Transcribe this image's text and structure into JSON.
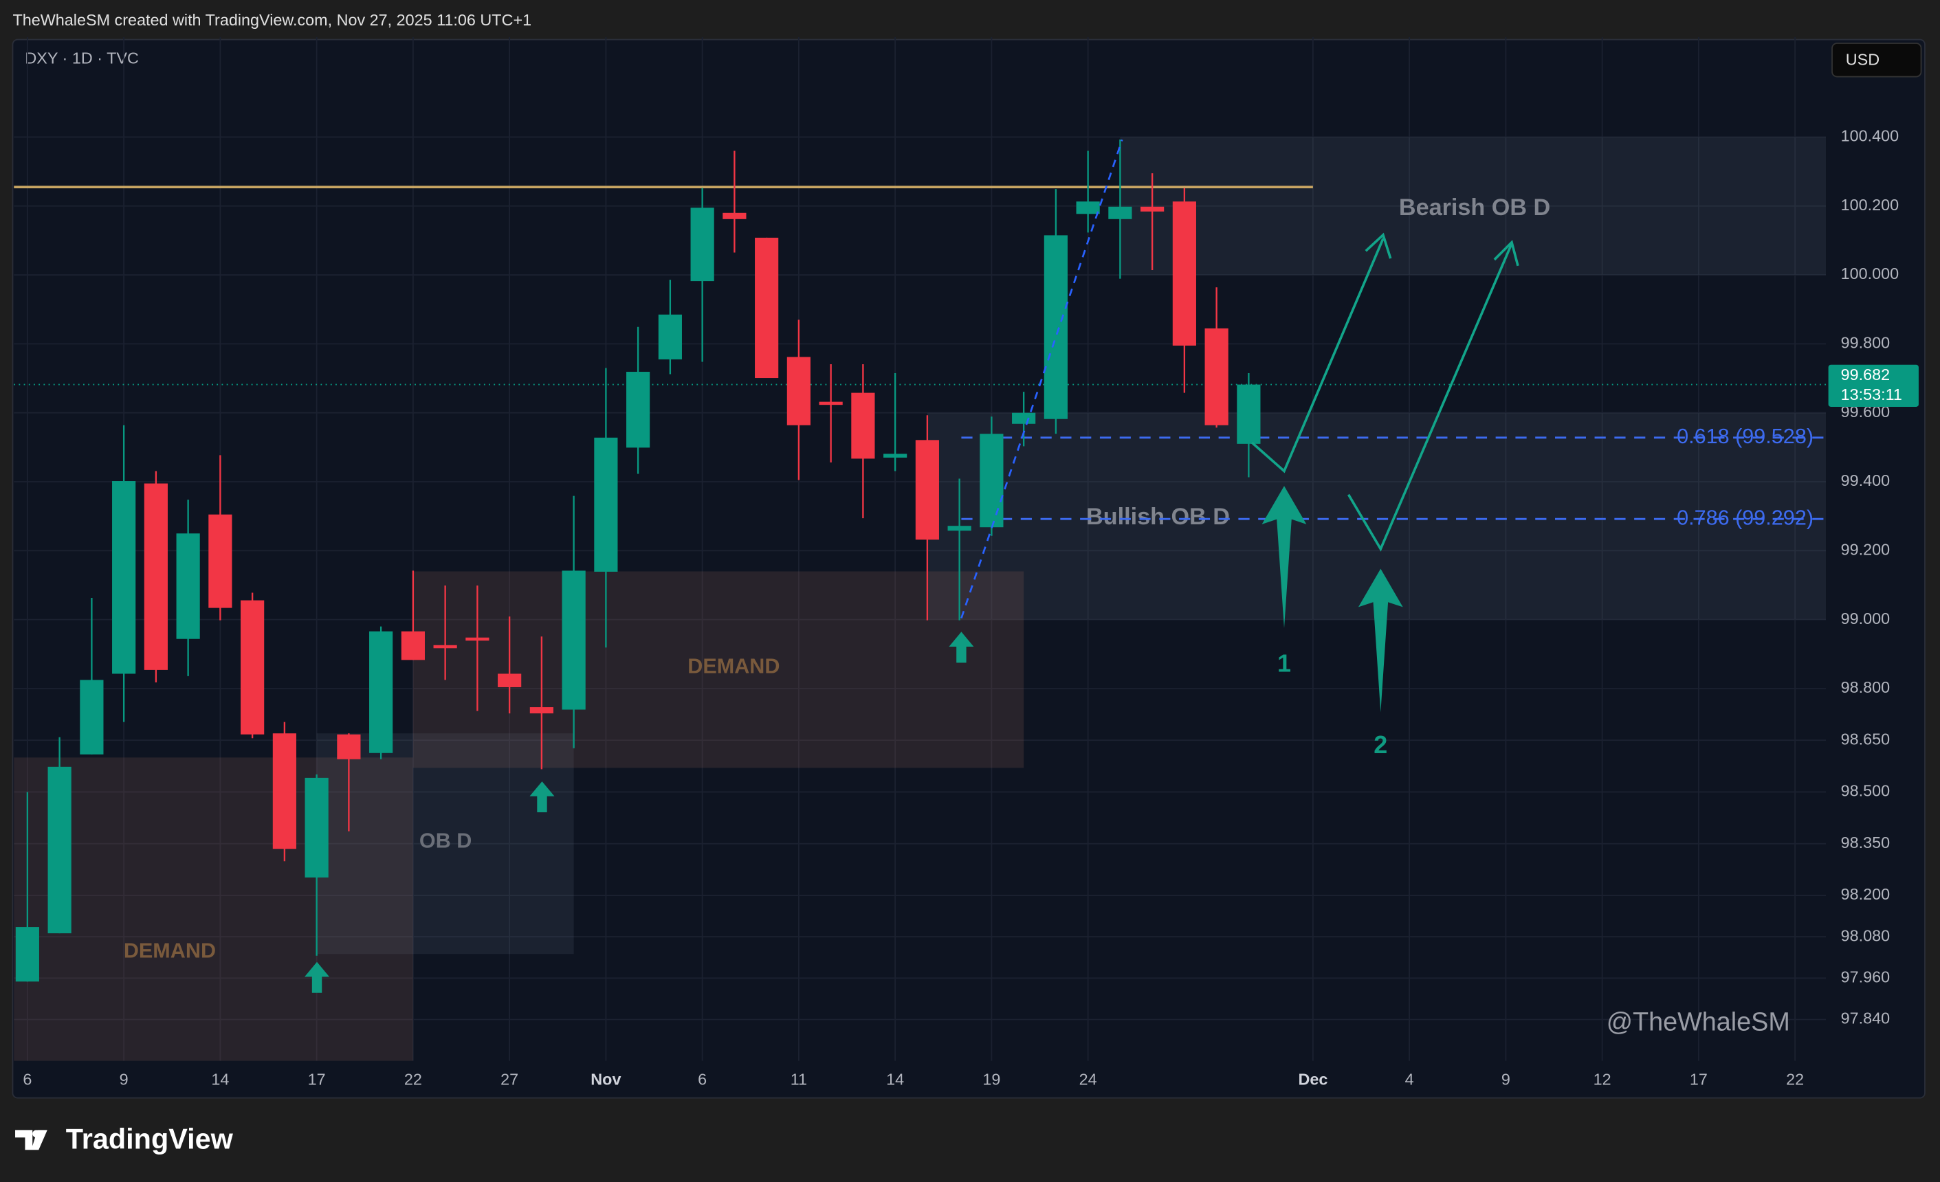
{
  "header": {
    "credit": "TheWhaleSM created with TradingView.com, Nov 27, 2025 11:06 UTC+1",
    "symbol": "DXY · 1D · TVC",
    "currency": "USD"
  },
  "footer": {
    "brand": "TradingView"
  },
  "chart_data": {
    "type": "candlestick",
    "up_color": "#089981",
    "down_color": "#f23645",
    "x": [
      0,
      1,
      2,
      3,
      4,
      5,
      6,
      7,
      8,
      9,
      10,
      11,
      12,
      13,
      14,
      15,
      16,
      17,
      18,
      19,
      20,
      21,
      22,
      23,
      24,
      25,
      26,
      27,
      28,
      29,
      30,
      31,
      32,
      33,
      34,
      35,
      36,
      37,
      38
    ],
    "open": [
      97.95,
      98.09,
      98.609,
      98.843,
      99.395,
      98.944,
      99.305,
      99.056,
      98.67,
      98.252,
      98.667,
      98.613,
      98.966,
      98.926,
      98.948,
      98.843,
      98.746,
      98.739,
      99.139,
      99.499,
      99.755,
      99.982,
      100.18,
      100.108,
      99.762,
      99.632,
      99.658,
      99.47,
      99.521,
      99.258,
      99.268,
      99.568,
      99.582,
      100.177,
      100.162,
      100.198,
      100.213,
      99.845,
      99.51
    ],
    "high": [
      98.5,
      98.659,
      99.063,
      99.564,
      99.431,
      99.348,
      99.477,
      99.078,
      98.703,
      98.551,
      98.67,
      98.98,
      99.142,
      99.099,
      99.099,
      99.009,
      98.951,
      99.359,
      99.73,
      99.849,
      99.986,
      100.252,
      100.36,
      100.108,
      99.87,
      99.741,
      99.741,
      99.715,
      99.593,
      99.409,
      99.589,
      99.661,
      100.249,
      100.36,
      100.393,
      100.295,
      100.252,
      99.964,
      99.715
    ],
    "low": [
      97.95,
      98.09,
      98.609,
      98.703,
      98.818,
      98.836,
      98.998,
      98.656,
      98.299,
      98.025,
      98.386,
      98.595,
      98.883,
      98.825,
      98.735,
      98.728,
      98.566,
      98.627,
      98.919,
      99.423,
      99.712,
      99.748,
      100.065,
      99.701,
      99.405,
      99.456,
      99.294,
      99.431,
      98.998,
      98.998,
      99.243,
      99.503,
      99.539,
      100.123,
      99.989,
      100.014,
      99.658,
      99.557,
      99.413
    ],
    "close": [
      98.108,
      98.573,
      98.825,
      99.402,
      98.854,
      99.25,
      99.034,
      98.667,
      98.335,
      98.541,
      98.595,
      98.966,
      98.883,
      98.919,
      98.941,
      98.804,
      98.728,
      99.142,
      99.528,
      99.719,
      99.885,
      100.195,
      100.162,
      99.701,
      99.564,
      99.625,
      99.467,
      99.481,
      99.232,
      99.272,
      99.539,
      99.6,
      100.115,
      100.213,
      100.198,
      100.184,
      99.795,
      99.564,
      99.682
    ],
    "xlim": [
      -0.42,
      55.96
    ],
    "ylim": [
      97.72,
      100.69
    ],
    "xticks": [
      {
        "value": 0,
        "label": "6"
      },
      {
        "value": 3,
        "label": "9"
      },
      {
        "value": 6,
        "label": "14"
      },
      {
        "value": 9,
        "label": "17"
      },
      {
        "value": 12,
        "label": "22"
      },
      {
        "value": 15,
        "label": "27"
      },
      {
        "value": 18,
        "label": "Nov"
      },
      {
        "value": 21,
        "label": "6"
      },
      {
        "value": 24,
        "label": "11"
      },
      {
        "value": 27,
        "label": "14"
      },
      {
        "value": 30,
        "label": "19"
      },
      {
        "value": 33,
        "label": "24"
      },
      {
        "value": 40,
        "label": "Dec"
      },
      {
        "value": 43,
        "label": "4"
      },
      {
        "value": 46,
        "label": "9"
      },
      {
        "value": 49,
        "label": "12"
      },
      {
        "value": 52,
        "label": "17"
      },
      {
        "value": 55,
        "label": "22"
      }
    ],
    "yticks": [
      {
        "value": 100.4,
        "label": "100.400"
      },
      {
        "value": 100.2,
        "label": "100.200"
      },
      {
        "value": 100.0,
        "label": "100.000"
      },
      {
        "value": 99.8,
        "label": "99.800"
      },
      {
        "value": 99.6,
        "label": "99.600"
      },
      {
        "value": 99.4,
        "label": "99.400"
      },
      {
        "value": 99.2,
        "label": "99.200"
      },
      {
        "value": 99.0,
        "label": "99.000"
      },
      {
        "value": 98.8,
        "label": "98.800"
      },
      {
        "value": 98.65,
        "label": "98.650"
      },
      {
        "value": 98.5,
        "label": "98.500"
      },
      {
        "value": 98.35,
        "label": "98.350"
      },
      {
        "value": 98.2,
        "label": "98.200"
      },
      {
        "value": 98.08,
        "label": "98.080"
      },
      {
        "value": 97.96,
        "label": "97.960"
      },
      {
        "value": 97.84,
        "label": "97.840"
      }
    ],
    "grid": true,
    "last_price": 99.682,
    "countdown": "13:53:11",
    "resistance": {
      "value": 100.255,
      "x": [
        -0.42,
        40
      ],
      "color": "#c9a663"
    },
    "fib_levels": [
      {
        "value": 99.528,
        "label": "0.618 (99.528)"
      },
      {
        "value": 99.292,
        "label": "0.786 (99.292)"
      }
    ],
    "fib_color": "#3d6bf0",
    "zones": [
      {
        "label": "Bearish OB D",
        "x": [
          34,
          55.96
        ],
        "y": [
          100.0,
          100.4
        ],
        "color": "#7f8aa0"
      },
      {
        "label": "Bullish OB D",
        "x": [
          28,
          55.96
        ],
        "y": [
          99.0,
          99.6
        ],
        "color": "#7f8aa0"
      },
      {
        "label": "DEMAND",
        "x": [
          -0.42,
          12
        ],
        "y": [
          97.72,
          98.6
        ],
        "color": "#8a5a50"
      },
      {
        "label": "DEMAND",
        "x": [
          12,
          31
        ],
        "y": [
          98.57,
          99.14
        ],
        "color": "#8a5a50"
      },
      {
        "label": "OB D",
        "x": [
          9,
          17
        ],
        "y": [
          98.03,
          98.67
        ],
        "color": "#7f8aa0"
      }
    ],
    "annotations": [
      "1",
      "2",
      "@TheWhaleSM"
    ]
  }
}
